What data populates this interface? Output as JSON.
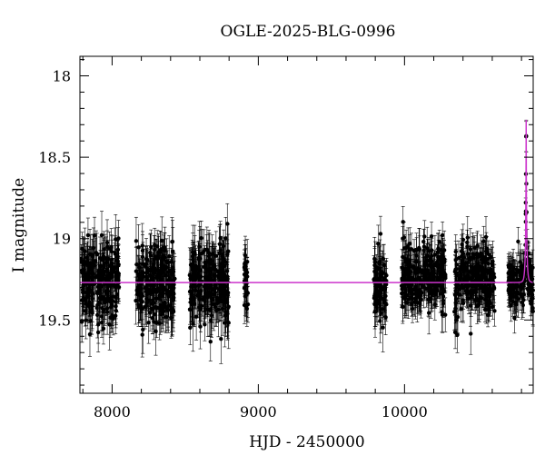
{
  "chart_data": {
    "type": "scatter",
    "title": "OGLE-2025-BLG-0996",
    "xlabel": "HJD - 2450000",
    "ylabel": "I magnitude",
    "xlim": [
      7780,
      10880
    ],
    "ylim": [
      19.95,
      17.88
    ],
    "y_inverted": true,
    "x_ticks": [
      8000,
      9000,
      10000
    ],
    "y_ticks": [
      18,
      18.5,
      19,
      19.5
    ],
    "x_tick_labels": [
      "8000",
      "9000",
      "10000"
    ],
    "y_tick_labels": [
      "18",
      "18.5",
      "19",
      "19.5"
    ],
    "grid": false,
    "legend": "none",
    "colors": {
      "points": "#000000",
      "model": "#cc33cc"
    },
    "series": [
      {
        "kind": "photometry",
        "note_seasons": [
          {
            "x_range": [
              7790,
              8050
            ],
            "base_mag": 19.27,
            "scatter": 0.12,
            "error": 0.12
          },
          {
            "x_range": [
              8160,
              8430
            ],
            "base_mag": 19.27,
            "scatter": 0.12,
            "error": 0.12
          },
          {
            "x_range": [
              8530,
              8800
            ],
            "base_mag": 19.27,
            "scatter": 0.13,
            "error": 0.13
          },
          {
            "x_range": [
              8900,
              8930
            ],
            "base_mag": 19.27,
            "scatter": 0.12,
            "error": 0.12
          },
          {
            "x_range": [
              9790,
              9880
            ],
            "base_mag": 19.3,
            "scatter": 0.12,
            "error": 0.12
          },
          {
            "x_range": [
              9980,
              10280
            ],
            "base_mag": 19.23,
            "scatter": 0.1,
            "error": 0.1
          },
          {
            "x_range": [
              10340,
              10620
            ],
            "base_mag": 19.25,
            "scatter": 0.1,
            "error": 0.1
          },
          {
            "x_range": [
              10710,
              10880
            ],
            "base_mag": 19.27,
            "scatter": 0.08,
            "error": 0.09
          }
        ]
      },
      {
        "kind": "model",
        "baseline_mag": 19.27,
        "peak_mag": 18.27,
        "peak_x": 10832,
        "tE": 10,
        "u0": 0.04
      }
    ]
  }
}
